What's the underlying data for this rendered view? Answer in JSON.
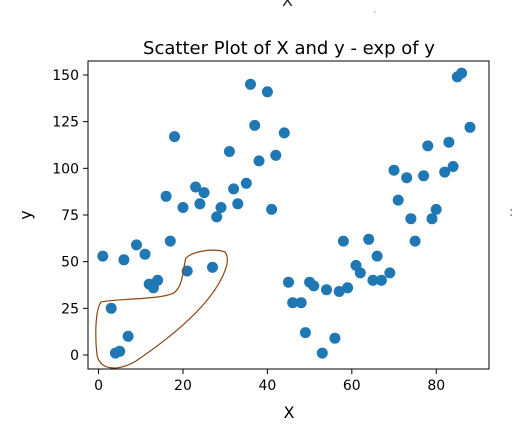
{
  "top_fragment": {
    "axis_label": "X",
    "tick_mark": "."
  },
  "right_fragment": ":",
  "chart_data": {
    "type": "scatter",
    "title": "Scatter Plot of X and y - exp of y",
    "xlabel": "X",
    "ylabel": "y",
    "xlim": [
      -2.5,
      92.5
    ],
    "ylim": [
      -7.5,
      157.5
    ],
    "xticks": [
      0,
      20,
      40,
      60,
      80
    ],
    "yticks": [
      0,
      25,
      50,
      75,
      100,
      125,
      150
    ],
    "grid": false,
    "marker_color": "#1f77b4",
    "annotation_color": "#8b4513",
    "points": [
      {
        "x": 1,
        "y": 53
      },
      {
        "x": 3,
        "y": 25
      },
      {
        "x": 4,
        "y": 1
      },
      {
        "x": 5,
        "y": 2
      },
      {
        "x": 6,
        "y": 51
      },
      {
        "x": 7,
        "y": 10
      },
      {
        "x": 9,
        "y": 59
      },
      {
        "x": 11,
        "y": 54
      },
      {
        "x": 12,
        "y": 38
      },
      {
        "x": 13,
        "y": 36
      },
      {
        "x": 14,
        "y": 40
      },
      {
        "x": 16,
        "y": 85
      },
      {
        "x": 17,
        "y": 61
      },
      {
        "x": 18,
        "y": 117
      },
      {
        "x": 20,
        "y": 79
      },
      {
        "x": 21,
        "y": 45
      },
      {
        "x": 23,
        "y": 90
      },
      {
        "x": 24,
        "y": 81
      },
      {
        "x": 25,
        "y": 87
      },
      {
        "x": 27,
        "y": 47
      },
      {
        "x": 28,
        "y": 74
      },
      {
        "x": 29,
        "y": 79
      },
      {
        "x": 31,
        "y": 109
      },
      {
        "x": 32,
        "y": 89
      },
      {
        "x": 33,
        "y": 81
      },
      {
        "x": 35,
        "y": 92
      },
      {
        "x": 36,
        "y": 145
      },
      {
        "x": 37,
        "y": 123
      },
      {
        "x": 38,
        "y": 104
      },
      {
        "x": 40,
        "y": 141
      },
      {
        "x": 41,
        "y": 78
      },
      {
        "x": 42,
        "y": 107
      },
      {
        "x": 44,
        "y": 119
      },
      {
        "x": 45,
        "y": 39
      },
      {
        "x": 46,
        "y": 28
      },
      {
        "x": 48,
        "y": 28
      },
      {
        "x": 49,
        "y": 12
      },
      {
        "x": 50,
        "y": 39
      },
      {
        "x": 51,
        "y": 37
      },
      {
        "x": 53,
        "y": 1
      },
      {
        "x": 54,
        "y": 35
      },
      {
        "x": 56,
        "y": 9
      },
      {
        "x": 57,
        "y": 34
      },
      {
        "x": 58,
        "y": 61
      },
      {
        "x": 59,
        "y": 36
      },
      {
        "x": 61,
        "y": 48
      },
      {
        "x": 62,
        "y": 44
      },
      {
        "x": 64,
        "y": 62
      },
      {
        "x": 65,
        "y": 40
      },
      {
        "x": 66,
        "y": 53
      },
      {
        "x": 67,
        "y": 40
      },
      {
        "x": 69,
        "y": 44
      },
      {
        "x": 70,
        "y": 99
      },
      {
        "x": 71,
        "y": 83
      },
      {
        "x": 73,
        "y": 95
      },
      {
        "x": 74,
        "y": 73
      },
      {
        "x": 75,
        "y": 61
      },
      {
        "x": 77,
        "y": 96
      },
      {
        "x": 78,
        "y": 112
      },
      {
        "x": 79,
        "y": 73
      },
      {
        "x": 80,
        "y": 78
      },
      {
        "x": 82,
        "y": 98
      },
      {
        "x": 83,
        "y": 114
      },
      {
        "x": 84,
        "y": 101
      },
      {
        "x": 85,
        "y": 149
      },
      {
        "x": 86,
        "y": 151
      },
      {
        "x": 88,
        "y": 122
      }
    ],
    "annotations": [
      {
        "type": "freehand-loop",
        "description": "hand-drawn outline enclosing the lower-left cluster of points"
      }
    ]
  }
}
